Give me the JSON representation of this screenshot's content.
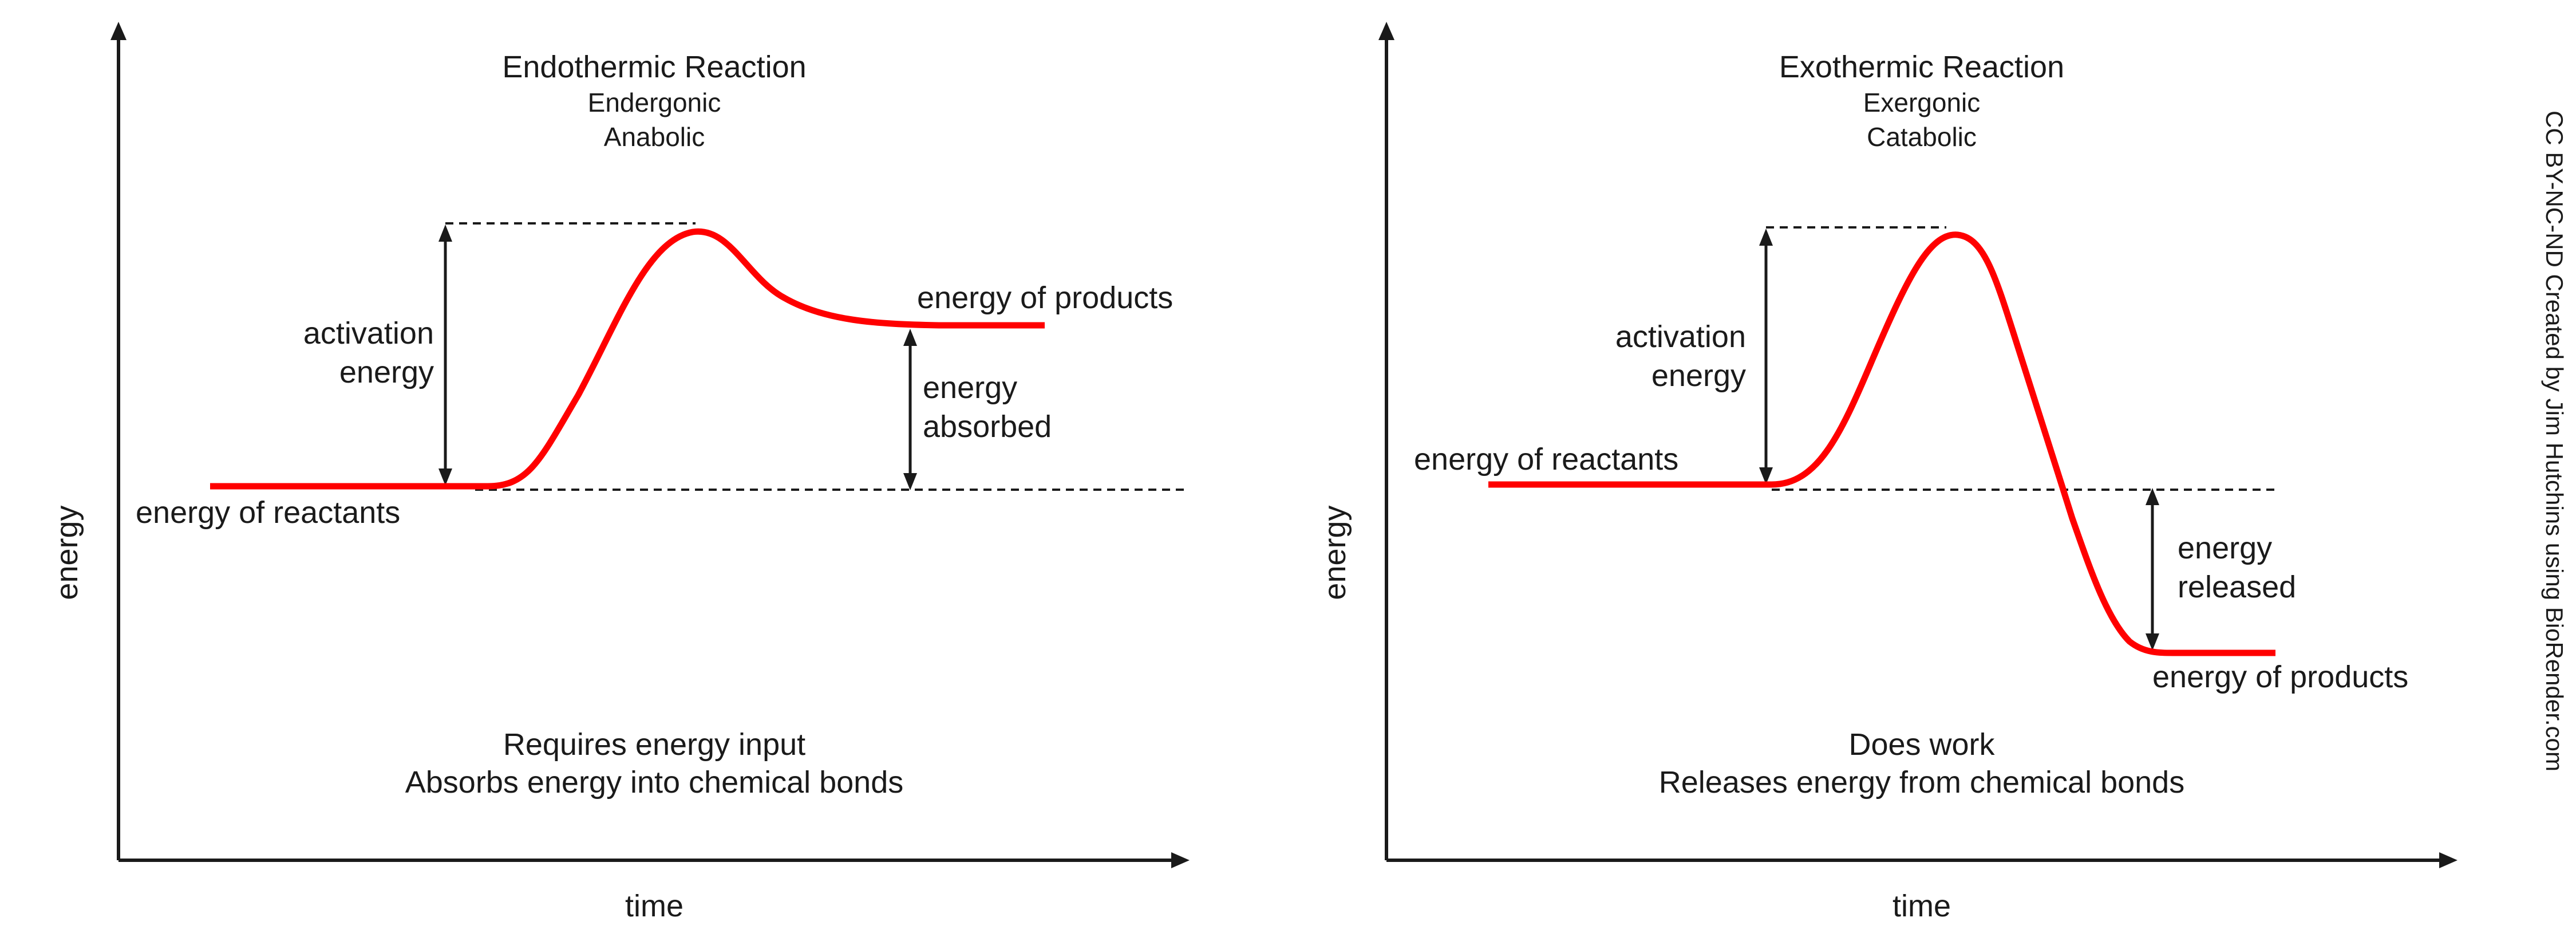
{
  "colors": {
    "curve": "#ff0000",
    "ink": "#1a1a1a",
    "background": "#ffffff"
  },
  "endothermic": {
    "title": "Endothermic Reaction",
    "subtitle_1": "Endergonic",
    "subtitle_2": "Anabolic",
    "x_axis_label": "time",
    "y_axis_label": "energy",
    "activation_label_1": "activation",
    "activation_label_2": "energy",
    "change_label_1": "energy",
    "change_label_2": "absorbed",
    "reactants_label": "energy of reactants",
    "products_label": "energy of products",
    "note_1": "Requires energy input",
    "note_2": "Absorbs energy into chemical bonds"
  },
  "exothermic": {
    "title": "Exothermic Reaction",
    "subtitle_1": "Exergonic",
    "subtitle_2": "Catabolic",
    "x_axis_label": "time",
    "y_axis_label": "energy",
    "activation_label_1": "activation",
    "activation_label_2": "energy",
    "change_label_1": "energy",
    "change_label_2": "released",
    "reactants_label": "energy of reactants",
    "products_label": "energy of products",
    "note_1": "Does work",
    "note_2": "Releases energy from chemical bonds"
  },
  "credit": "CC BY-NC-ND Created by Jim Hutchins using BioRender.com"
}
